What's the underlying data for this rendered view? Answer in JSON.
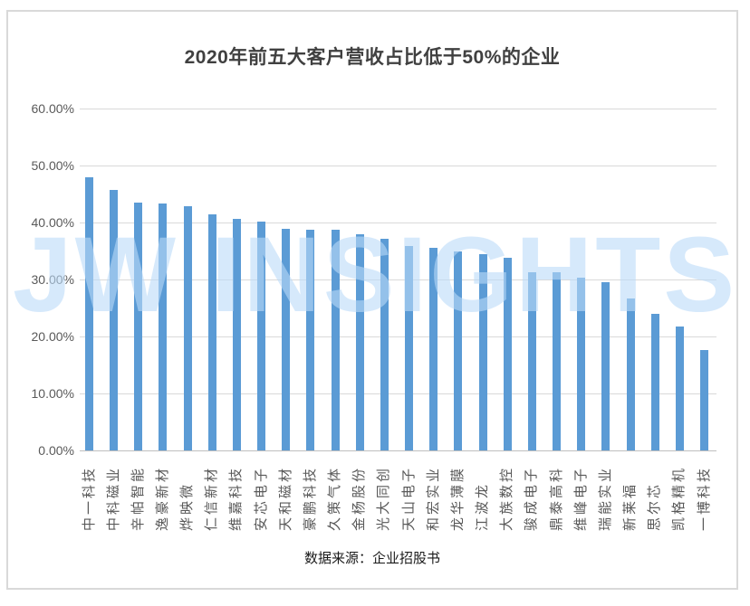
{
  "title": "2020年前五大客户营收占比低于50%的企业",
  "watermark": "JW INSIGHTS",
  "footer": {
    "source_label": "数据来源：企业招股书"
  },
  "colors": {
    "bar": "#5B9BD5",
    "gridline": "#D9D9D9",
    "axis_line": "#BFBFBF",
    "tick_label": "#595959",
    "title": "#404040",
    "watermark": "rgba(186,218,248,0.6)",
    "frame_border": "#D9D9D9"
  },
  "chart_data": {
    "type": "bar",
    "title": "2020年前五大客户营收占比低于50%的企业",
    "categories": [
      "中一科技",
      "中科磁业",
      "辛帕智能",
      "逸豪新材",
      "烨映微",
      "仁信新材",
      "维嘉科技",
      "安芯电子",
      "天和磁材",
      "豪鹏科技",
      "久策气体",
      "金杨股份",
      "光大同创",
      "天山电子",
      "和宏实业",
      "龙华薄膜",
      "江波龙",
      "大族数控",
      "骏成电子",
      "鼎泰高科",
      "维峰电子",
      "瑞能实业",
      "新莱福",
      "思尔芯",
      "凯格精机",
      "一博科技"
    ],
    "values": [
      48.0,
      45.7,
      43.5,
      43.3,
      42.9,
      41.4,
      40.7,
      40.1,
      38.9,
      38.8,
      38.7,
      38.0,
      37.1,
      35.9,
      35.5,
      34.9,
      34.5,
      33.8,
      31.3,
      31.2,
      30.3,
      29.6,
      26.6,
      23.9,
      21.8,
      17.6
    ],
    "unit": "%",
    "xlabel": "",
    "ylabel": "",
    "ylim": [
      0,
      60
    ],
    "yticks": [
      "60.00%",
      "50.00%",
      "40.00%",
      "30.00%",
      "20.00%",
      "10.00%",
      "0.00%"
    ],
    "grid": true,
    "legend": false,
    "bar_color": "#5B9BD5",
    "source": "数据来源：企业招股书"
  }
}
